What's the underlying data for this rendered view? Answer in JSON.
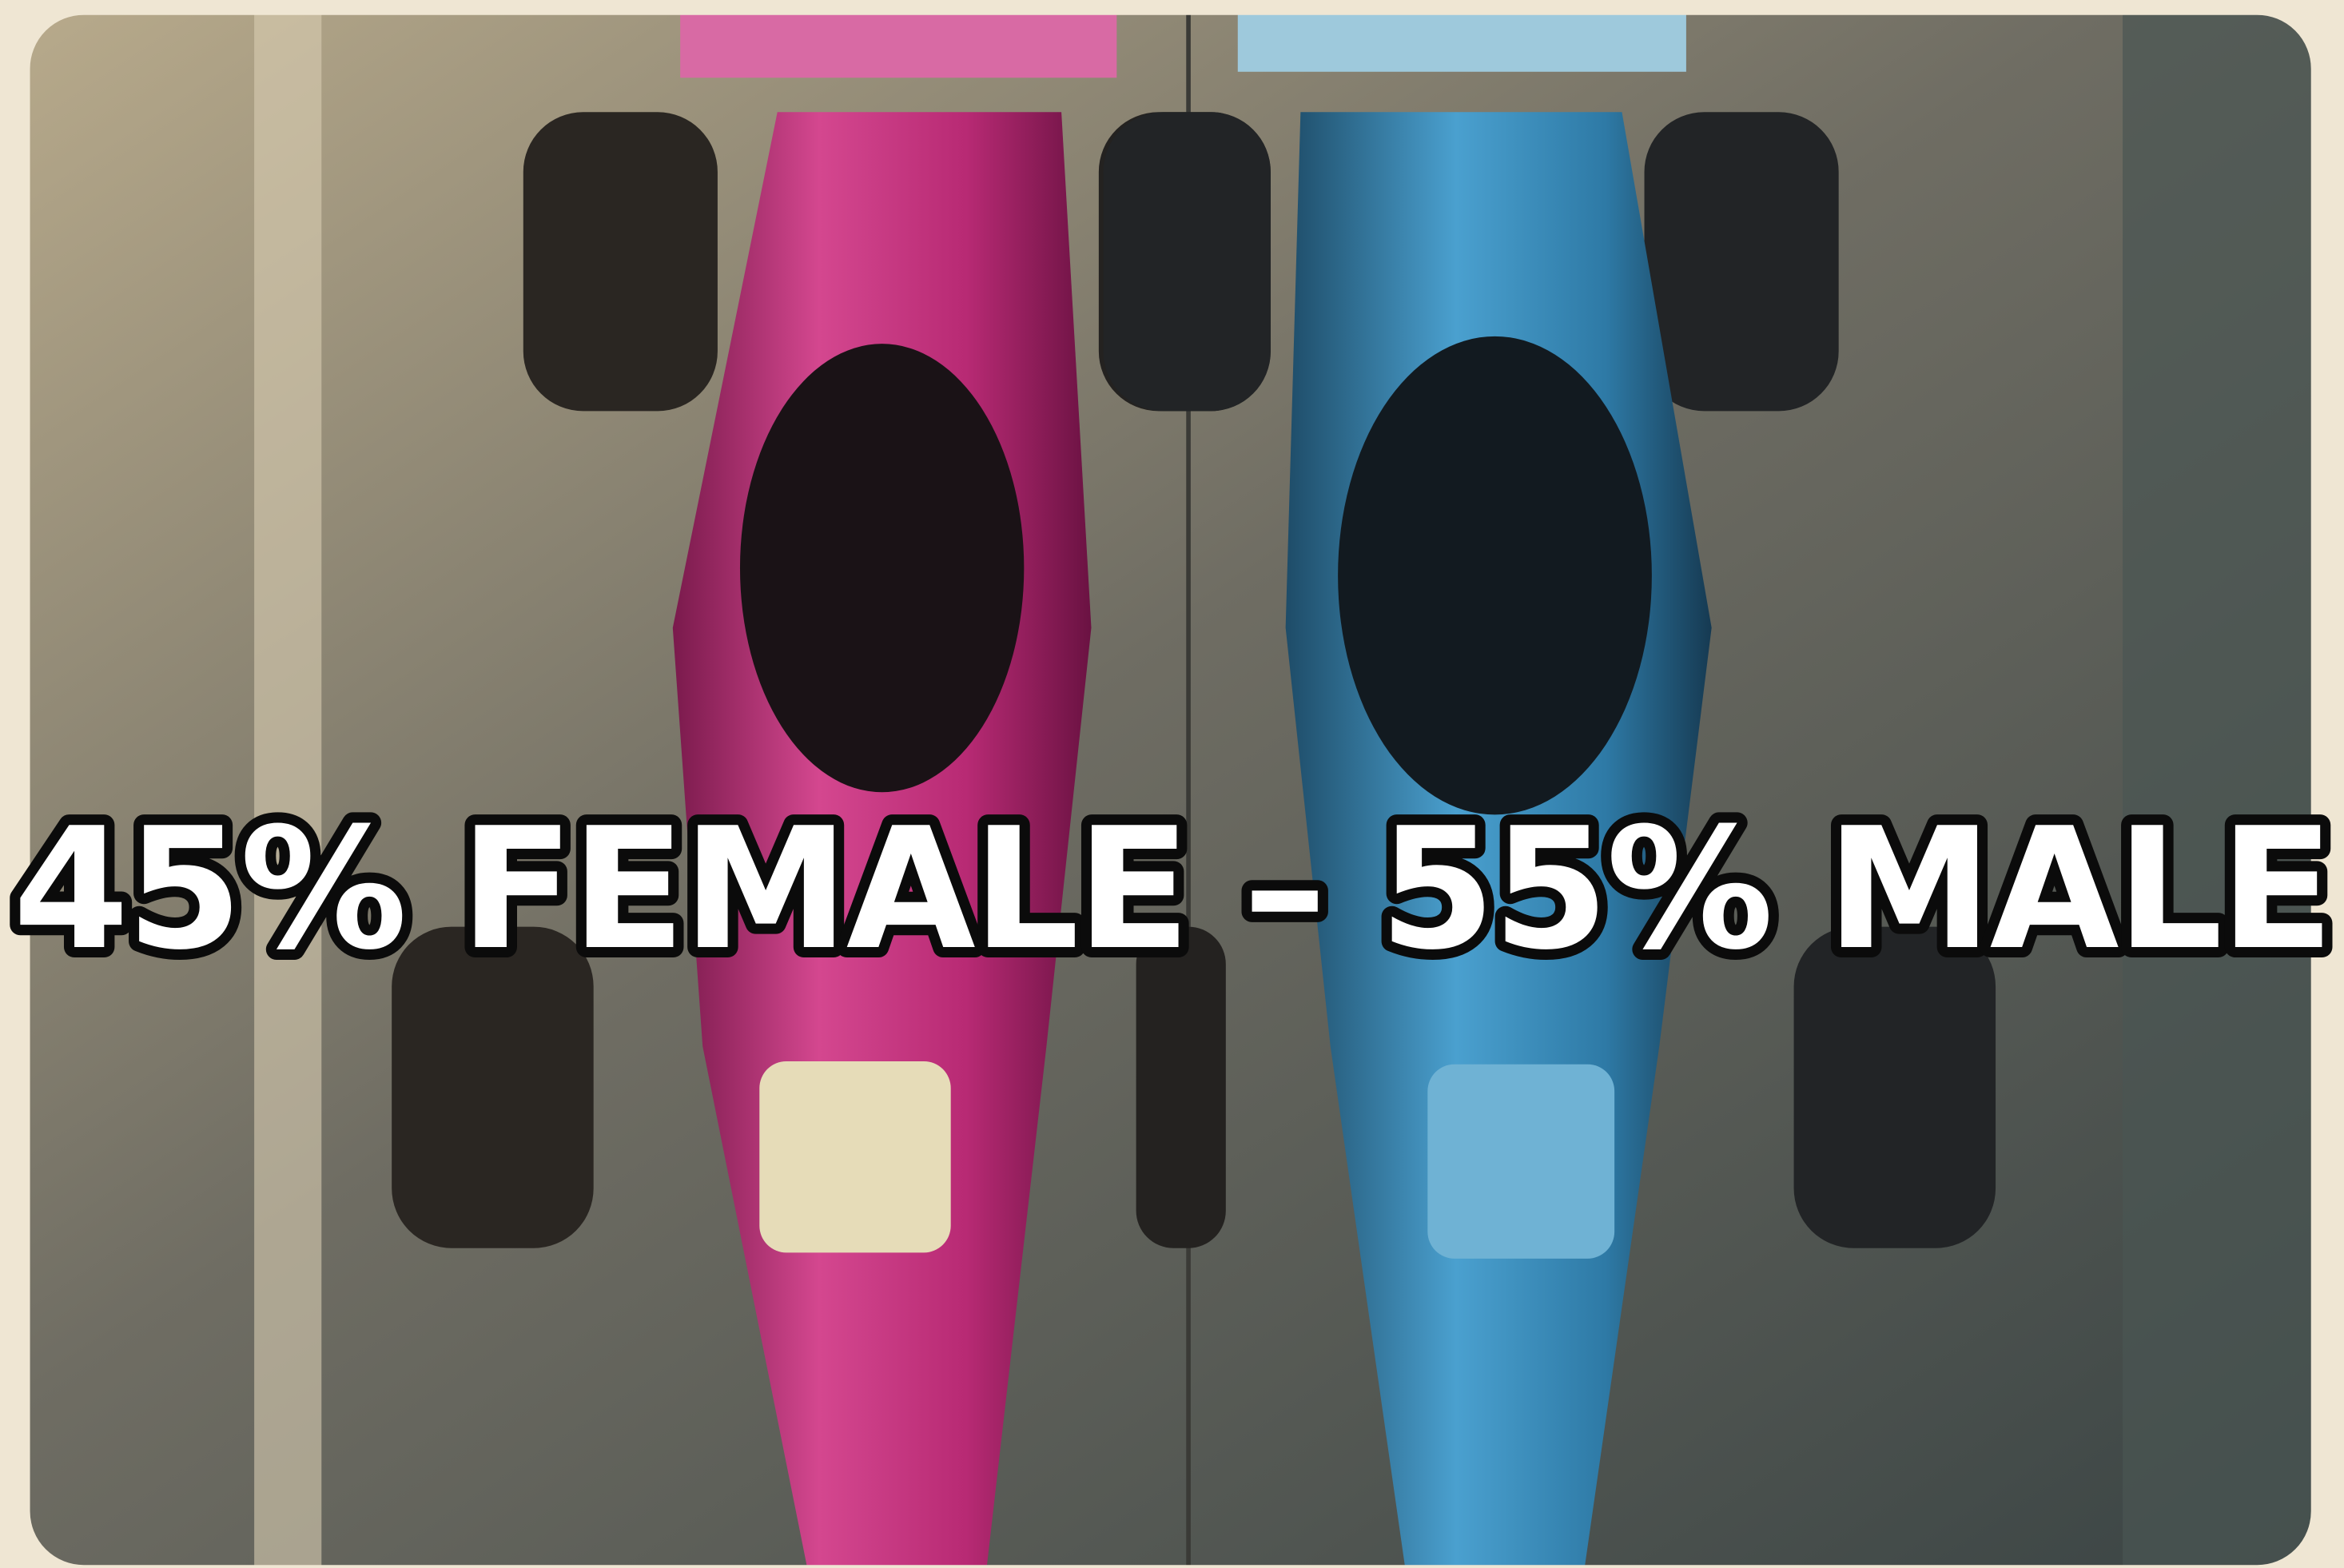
{
  "caption": "45% FEMALE – 55% MALE"
}
